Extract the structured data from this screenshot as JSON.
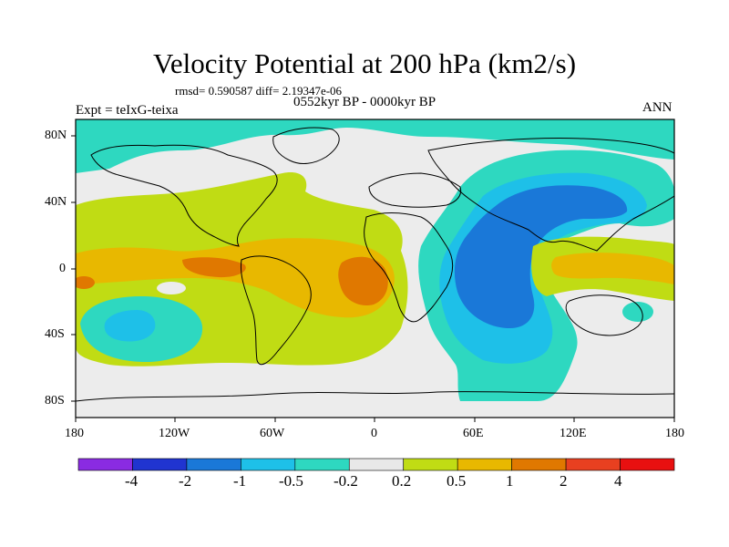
{
  "title": "Velocity Potential at 200 hPa (km2/s)",
  "stats": "rmsd= 0.590587 diff= 2.19347e-06",
  "period": "0552kyr BP - 0000kyr BP",
  "experiment": "Expt = teIxG-teixa",
  "season": "ANN",
  "lat_ticks": [
    "80N",
    "40N",
    "0",
    "40S",
    "80S"
  ],
  "lon_ticks": [
    "180",
    "120W",
    "60W",
    "0",
    "60E",
    "120E",
    "180"
  ],
  "colorbar": {
    "labels": [
      "-4",
      "-2",
      "-1",
      "-0.5",
      "-0.2",
      "0.2",
      "0.5",
      "1",
      "2",
      "4"
    ],
    "colors": [
      "#8a2be2",
      "#2034d0",
      "#1a78d8",
      "#1ec0e8",
      "#2ed8c0",
      "#e8e8e8",
      "#c0dc14",
      "#e8b800",
      "#e07800",
      "#e84020",
      "#e81010"
    ]
  },
  "colors": {
    "neutral": "#ececec",
    "pos_light": "#c0dc14",
    "pos_mid": "#e8b800",
    "pos_strong": "#e07800",
    "neg_light": "#2ed8c0",
    "neg_mid": "#1ec0e8",
    "neg_strong": "#1a78d8"
  }
}
